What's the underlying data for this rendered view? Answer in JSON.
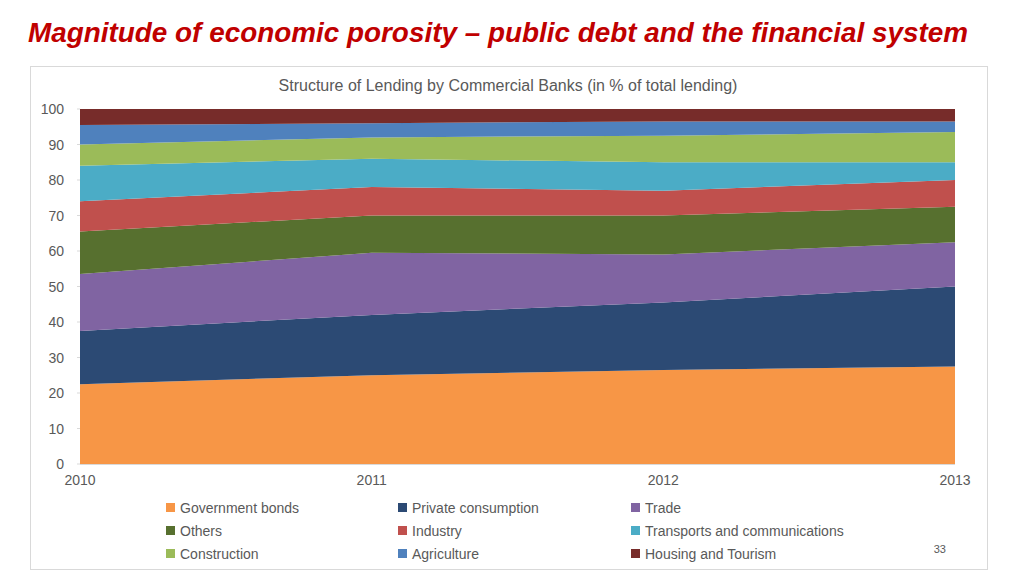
{
  "slide_title": "Magnitude of economic porosity – public debt and the financial system",
  "page_number": "33",
  "chart_data": {
    "type": "area",
    "title": "Structure of Lending by Commercial Banks (in % of total lending)",
    "categories": [
      "2010",
      "2011",
      "2012",
      "2013"
    ],
    "stacked": true,
    "grid": false,
    "legend": "bottom",
    "ylim": [
      0,
      100
    ],
    "yticks": [
      0,
      10,
      20,
      30,
      40,
      50,
      60,
      70,
      80,
      90,
      100
    ],
    "series": [
      {
        "name": "Government bonds",
        "color": "#f79646",
        "values": [
          22.5,
          25,
          26.5,
          27.5
        ]
      },
      {
        "name": "Private consumption",
        "color": "#2c4a74",
        "values": [
          15,
          17,
          19,
          22.5
        ]
      },
      {
        "name": "Trade",
        "color": "#8064a2",
        "values": [
          16,
          17.5,
          13.5,
          12.5
        ]
      },
      {
        "name": "Others",
        "color": "#57702f",
        "values": [
          12,
          10.5,
          11,
          10
        ]
      },
      {
        "name": "Industry",
        "color": "#c0504d",
        "values": [
          8.5,
          8,
          7,
          7.5
        ]
      },
      {
        "name": "Transports and communications",
        "color": "#4bacc6",
        "values": [
          10,
          8,
          8,
          5
        ]
      },
      {
        "name": "Construction",
        "color": "#9bbb59",
        "values": [
          6,
          6,
          7.5,
          8.5
        ]
      },
      {
        "name": "Agriculture",
        "color": "#4f81bd",
        "values": [
          5.5,
          4,
          4,
          3
        ]
      },
      {
        "name": "Housing and Tourism",
        "color": "#772c2a",
        "values": [
          4.5,
          4,
          3.5,
          3.5
        ]
      }
    ]
  }
}
